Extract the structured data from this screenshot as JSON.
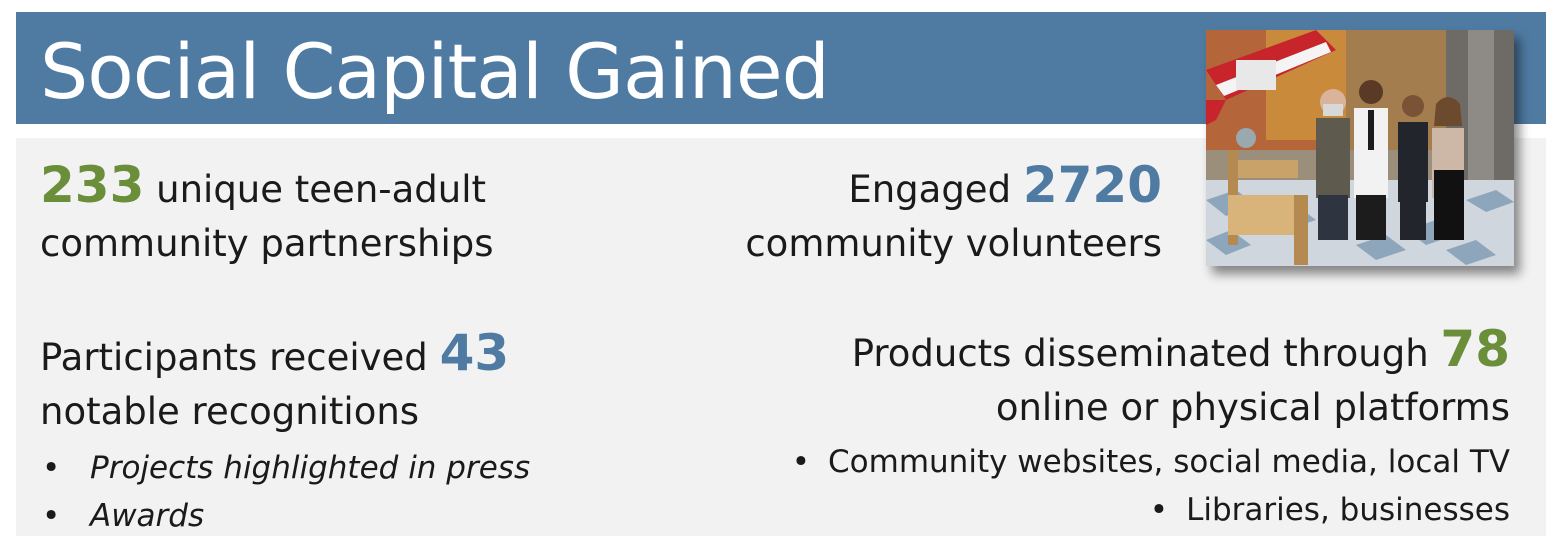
{
  "title": "Social Capital Gained",
  "stat1": {
    "number": "233",
    "text_line1": "unique teen-adult",
    "text_line2": "community partnerships"
  },
  "stat2": {
    "prefix": "Engaged",
    "number": "2720",
    "text_line2": "community volunteers"
  },
  "stat3": {
    "prefix": "Participants received",
    "number": "43",
    "text_line2": "notable recognitions",
    "bullets": [
      "Projects highlighted in press",
      "Awards"
    ]
  },
  "stat4": {
    "prefix": "Products disseminated through",
    "number": "78",
    "text_line2": "online or physical platforms",
    "bullets": [
      "Community websites, social media, local TV",
      "Libraries, businesses"
    ]
  },
  "colors": {
    "title_bar": "#4f7ba3",
    "accent_green": "#6b8e3a",
    "accent_blue": "#4f7ba3",
    "content_bg": "#f2f2f2"
  },
  "photo": {
    "icon": "group-photo-image"
  }
}
